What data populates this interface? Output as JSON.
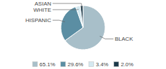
{
  "chart_data": {
    "type": "pie",
    "categories": [
      "BLACK",
      "HISPANIC",
      "WHITE",
      "ASIAN"
    ],
    "values": [
      65.1,
      29.6,
      3.4,
      2.0
    ],
    "value_labels": [
      "65.1%",
      "29.6%",
      "3.4%",
      "2.0%"
    ],
    "colors": [
      "#a8bfc9",
      "#5b8ea3",
      "#d4e8f0",
      "#1c3a4a"
    ],
    "legend": "bottom"
  }
}
